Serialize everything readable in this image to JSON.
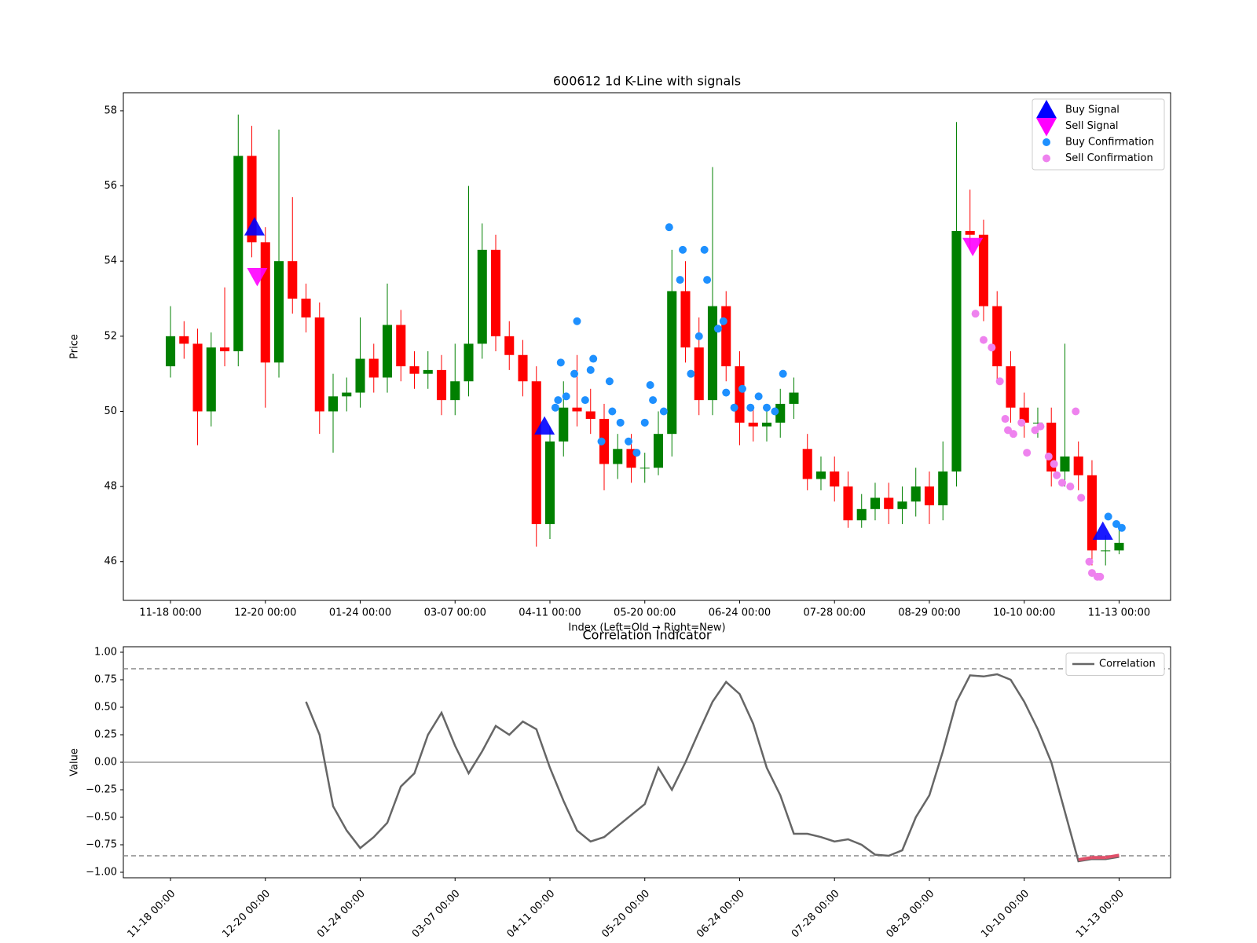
{
  "chart_data": [
    {
      "type": "candlestick",
      "title": "600612 1d K-Line with signals",
      "xlabel": "Index (Left=Old → Right=New)",
      "ylabel": "Price",
      "xlim": [
        -17.4,
        369
      ],
      "ylim": [
        44.97,
        58.48
      ],
      "yticks": [
        46,
        48,
        50,
        52,
        54,
        56,
        58
      ],
      "xticks": [
        {
          "value": 0,
          "label": "11-18 00:00"
        },
        {
          "value": 35,
          "label": "12-20 00:00"
        },
        {
          "value": 70,
          "label": "01-24 00:00"
        },
        {
          "value": 105,
          "label": "03-07 00:00"
        },
        {
          "value": 140,
          "label": "04-11 00:00"
        },
        {
          "value": 175,
          "label": "05-20 00:00"
        },
        {
          "value": 210,
          "label": "06-24 00:00"
        },
        {
          "value": 245,
          "label": "07-28 00:00"
        },
        {
          "value": 280,
          "label": "08-29 00:00"
        },
        {
          "value": 315,
          "label": "10-10 00:00"
        },
        {
          "value": 350,
          "label": "11-13 00:00"
        }
      ],
      "up_color": "green",
      "down_color": "red",
      "x": [
        0,
        5,
        10,
        15,
        20,
        25,
        30,
        35,
        40,
        45,
        50,
        55,
        60,
        65,
        70,
        75,
        80,
        85,
        90,
        95,
        100,
        105,
        110,
        115,
        120,
        125,
        130,
        135,
        140,
        145,
        150,
        155,
        160,
        165,
        170,
        175,
        180,
        185,
        190,
        195,
        200,
        205,
        210,
        215,
        220,
        225,
        230,
        235,
        240,
        245,
        250,
        255,
        260,
        265,
        270,
        275,
        280,
        285,
        290,
        295,
        300,
        305,
        310,
        315,
        320,
        325,
        330,
        335,
        340,
        345,
        350
      ],
      "open": [
        51.2,
        52.0,
        51.8,
        50.0,
        51.7,
        51.6,
        56.8,
        54.5,
        51.3,
        54.0,
        53.0,
        52.5,
        50.0,
        50.4,
        50.5,
        51.4,
        50.9,
        52.3,
        51.2,
        51.0,
        51.1,
        50.3,
        50.8,
        51.8,
        54.3,
        52.0,
        51.5,
        50.8,
        47.0,
        49.2,
        50.1,
        50.0,
        49.8,
        48.6,
        49.0,
        48.5,
        48.5,
        49.4,
        53.2,
        51.7,
        50.3,
        52.8,
        51.2,
        49.7,
        49.6,
        49.7,
        50.2,
        49.0,
        48.2,
        48.4,
        48.0,
        47.1,
        47.4,
        47.7,
        47.4,
        47.6,
        48.0,
        47.5,
        48.4,
        54.8,
        54.7,
        52.8,
        51.2,
        50.1,
        49.7,
        49.7,
        48.4,
        48.8,
        48.3,
        46.3,
        46.3
      ],
      "high": [
        52.8,
        52.4,
        52.2,
        52.1,
        53.3,
        57.9,
        57.6,
        54.9,
        57.5,
        55.7,
        53.4,
        52.9,
        51.0,
        50.9,
        52.5,
        51.8,
        53.4,
        52.7,
        51.6,
        51.6,
        51.5,
        51.8,
        56.0,
        55.0,
        54.7,
        52.4,
        51.9,
        51.2,
        49.6,
        50.8,
        51.5,
        50.6,
        50.2,
        49.4,
        49.4,
        48.9,
        50.0,
        54.3,
        54.0,
        52.5,
        56.5,
        53.2,
        51.6,
        50.1,
        50.1,
        50.6,
        50.9,
        49.4,
        48.8,
        48.8,
        48.4,
        47.8,
        48.1,
        48.1,
        48.0,
        48.5,
        48.4,
        49.2,
        57.7,
        55.9,
        55.1,
        53.2,
        51.6,
        50.5,
        50.1,
        50.1,
        51.8,
        49.2,
        48.7,
        46.7,
        46.9
      ],
      "low": [
        50.9,
        51.4,
        49.1,
        49.6,
        51.2,
        51.2,
        54.1,
        50.1,
        50.9,
        52.6,
        52.1,
        49.4,
        48.9,
        50.0,
        50.1,
        50.5,
        50.5,
        50.8,
        50.6,
        50.6,
        49.9,
        49.9,
        50.4,
        51.4,
        51.6,
        51.1,
        50.4,
        46.4,
        46.6,
        48.8,
        49.6,
        49.4,
        47.9,
        48.2,
        48.1,
        48.1,
        48.3,
        48.8,
        51.3,
        49.9,
        49.9,
        50.8,
        49.1,
        49.2,
        49.2,
        49.3,
        49.8,
        47.9,
        47.9,
        47.6,
        46.9,
        46.9,
        47.1,
        47.0,
        47.0,
        47.2,
        47.0,
        47.1,
        48.0,
        54.3,
        52.4,
        50.8,
        49.7,
        49.3,
        49.3,
        48.0,
        48.0,
        47.9,
        45.9,
        45.9,
        46.2
      ],
      "close": [
        52.0,
        51.8,
        50.0,
        51.7,
        51.6,
        56.8,
        54.5,
        51.3,
        54.0,
        53.0,
        52.5,
        50.0,
        50.4,
        50.5,
        51.4,
        50.9,
        52.3,
        51.2,
        51.0,
        51.1,
        50.3,
        50.8,
        51.8,
        54.3,
        52.0,
        51.5,
        50.8,
        47.0,
        49.2,
        50.1,
        50.0,
        49.8,
        48.6,
        49.0,
        48.5,
        48.5,
        49.4,
        53.2,
        51.7,
        50.3,
        52.8,
        51.2,
        49.7,
        49.6,
        49.7,
        50.2,
        50.5,
        48.2,
        48.4,
        48.0,
        47.1,
        47.4,
        47.7,
        47.4,
        47.6,
        48.0,
        47.5,
        48.4,
        54.8,
        54.7,
        52.8,
        51.2,
        50.1,
        49.7,
        49.7,
        48.4,
        48.8,
        48.3,
        46.3,
        46.3,
        46.5
      ],
      "series": [
        {
          "name": "Buy Signal",
          "marker": "triangle-up",
          "color": "blue",
          "x": [
            31,
            138,
            344
          ],
          "values": [
            54.9,
            49.6,
            46.8
          ]
        },
        {
          "name": "Sell Signal",
          "marker": "triangle-down",
          "color": "magenta",
          "x": [
            32,
            296
          ],
          "values": [
            53.6,
            54.4
          ]
        },
        {
          "name": "Buy Confirmation",
          "marker": "circle",
          "color": "#1e90ff",
          "x": [
            142,
            143,
            144,
            146,
            149,
            150,
            153,
            155,
            156,
            159,
            162,
            163,
            166,
            169,
            172,
            175,
            177,
            178,
            182,
            184,
            188,
            189,
            192,
            195,
            197,
            198,
            202,
            204,
            205,
            208,
            211,
            214,
            217,
            220,
            223,
            226,
            346,
            349,
            351
          ],
          "values": [
            50.1,
            50.3,
            51.3,
            50.4,
            51.0,
            52.4,
            50.3,
            51.1,
            51.4,
            49.2,
            50.8,
            50.0,
            49.7,
            49.2,
            48.9,
            49.7,
            50.7,
            50.3,
            50.0,
            54.9,
            53.5,
            54.3,
            51.0,
            52.0,
            54.3,
            53.5,
            52.2,
            52.4,
            50.5,
            50.1,
            50.6,
            50.1,
            50.4,
            50.1,
            50.0,
            51.0,
            47.2,
            47.0,
            46.9
          ]
        },
        {
          "name": "Sell Confirmation",
          "marker": "circle",
          "color": "violet",
          "x": [
            297,
            300,
            303,
            306,
            308,
            309,
            311,
            314,
            316,
            319,
            321,
            324,
            326,
            327,
            329,
            332,
            334,
            336,
            339,
            340,
            342,
            343
          ],
          "values": [
            52.6,
            51.9,
            51.7,
            50.8,
            49.8,
            49.5,
            49.4,
            49.7,
            48.9,
            49.5,
            49.6,
            48.8,
            48.6,
            48.3,
            48.1,
            48.0,
            50.0,
            47.7,
            46.0,
            45.7,
            45.6,
            45.6
          ]
        }
      ],
      "legend": "upper right"
    },
    {
      "type": "line",
      "title": "Correlation Indicator",
      "ylabel": "Value",
      "xlim": [
        -17.4,
        369
      ],
      "ylim": [
        -1.05,
        1.05
      ],
      "yticks": [
        {
          "value": -1,
          "label": "−1.00"
        },
        {
          "value": -0.75,
          "label": "−0.75"
        },
        {
          "value": -0.5,
          "label": "−0.50"
        },
        {
          "value": -0.25,
          "label": "−0.25"
        },
        {
          "value": 0,
          "label": "0.00"
        },
        {
          "value": 0.25,
          "label": "0.25"
        },
        {
          "value": 0.5,
          "label": "0.50"
        },
        {
          "value": 0.75,
          "label": "0.75"
        },
        {
          "value": 1,
          "label": "1.00"
        }
      ],
      "xticks": [
        {
          "value": 0,
          "label": "11-18 00:00"
        },
        {
          "value": 35,
          "label": "12-20 00:00"
        },
        {
          "value": 70,
          "label": "01-24 00:00"
        },
        {
          "value": 105,
          "label": "03-07 00:00"
        },
        {
          "value": 140,
          "label": "04-11 00:00"
        },
        {
          "value": 175,
          "label": "05-20 00:00"
        },
        {
          "value": 210,
          "label": "06-24 00:00"
        },
        {
          "value": 245,
          "label": "07-28 00:00"
        },
        {
          "value": 280,
          "label": "08-29 00:00"
        },
        {
          "value": 315,
          "label": "10-10 00:00"
        },
        {
          "value": 350,
          "label": "11-13 00:00"
        }
      ],
      "thresholds": [
        0.85,
        -0.85
      ],
      "highlight_color": "#e0506a",
      "series": [
        {
          "name": "Correlation",
          "color": "#666666",
          "x": [
            50,
            55,
            60,
            65,
            70,
            75,
            80,
            85,
            90,
            95,
            100,
            105,
            110,
            115,
            120,
            125,
            130,
            135,
            140,
            145,
            150,
            155,
            160,
            165,
            170,
            175,
            180,
            185,
            190,
            195,
            200,
            205,
            210,
            215,
            220,
            225,
            230,
            235,
            240,
            245,
            250,
            255,
            260,
            265,
            270,
            275,
            280,
            285,
            290,
            295,
            300,
            305,
            310,
            315,
            320,
            325,
            330,
            335,
            340,
            345,
            350
          ],
          "values": [
            0.55,
            0.25,
            -0.4,
            -0.62,
            -0.78,
            -0.68,
            -0.55,
            -0.22,
            -0.1,
            0.25,
            0.45,
            0.15,
            -0.1,
            0.1,
            0.33,
            0.25,
            0.37,
            0.3,
            -0.05,
            -0.35,
            -0.62,
            -0.72,
            -0.68,
            -0.58,
            -0.48,
            -0.38,
            -0.05,
            -0.25,
            0.0,
            0.28,
            0.55,
            0.73,
            0.62,
            0.35,
            -0.05,
            -0.3,
            -0.65,
            -0.65,
            -0.68,
            -0.72,
            -0.7,
            -0.75,
            -0.84,
            -0.85,
            -0.8,
            -0.5,
            -0.3,
            0.1,
            0.55,
            0.79,
            0.78,
            0.8,
            0.75,
            0.55,
            0.3,
            0.0,
            -0.45,
            -0.9,
            -0.88,
            -0.88,
            -0.86
          ]
        }
      ],
      "legend": "upper right"
    }
  ]
}
